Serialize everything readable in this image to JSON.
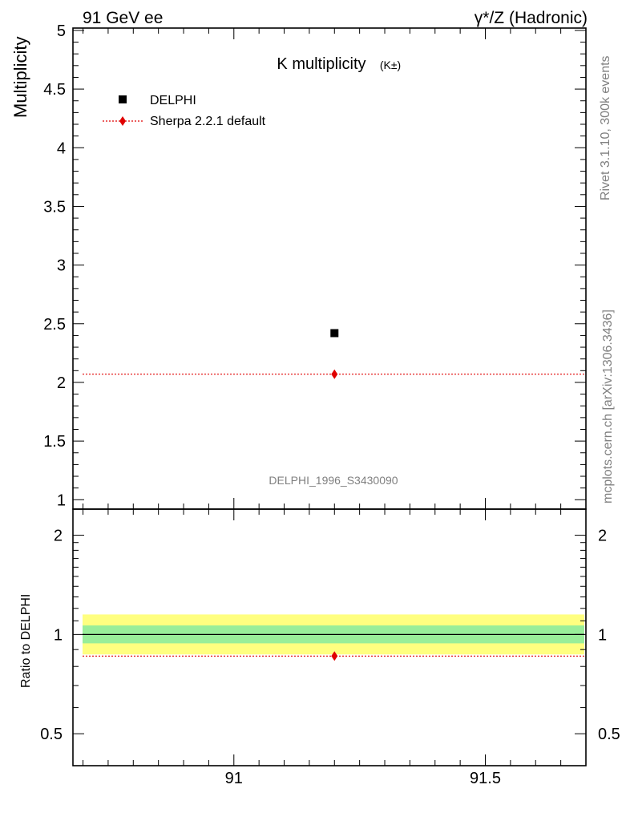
{
  "header": {
    "left": "91 GeV ee",
    "right": "γ*/Z (Hadronic)"
  },
  "side_text": {
    "top": "Rivet 3.1.10,  300k events",
    "bottom": "mcplots.cern.ch [arXiv:1306.3436]"
  },
  "chart_data": [
    {
      "type": "scatter",
      "title": "K multiplicity",
      "title_suffix": "(K±)",
      "ylabel": "Multiplicity",
      "xlabel": "",
      "watermark": "DELPHI_1996_S3430090",
      "xlim": [
        90.68,
        91.7
      ],
      "ylim": [
        0.92,
        5.02
      ],
      "yticks": [
        1,
        1.5,
        2,
        2.5,
        3,
        3.5,
        4,
        4.5,
        5
      ],
      "ytick_labels": [
        "1",
        "1.5",
        "2",
        "2.5",
        "3",
        "3.5",
        "4",
        "4.5",
        "5"
      ],
      "legend_position": "top-left",
      "series": [
        {
          "name": "DELPHI",
          "marker": "square",
          "color": "#000000",
          "points": [
            {
              "x": 91.2,
              "y": 2.42
            }
          ]
        },
        {
          "name": "Sherpa 2.2.1 default",
          "marker": "diamond",
          "color": "#e00000",
          "line_y": 2.07,
          "points": [
            {
              "x": 91.2,
              "y": 2.07
            }
          ]
        }
      ]
    },
    {
      "type": "scatter",
      "title": "",
      "ylabel": "Ratio to DELPHI",
      "xlabel": "",
      "xlim": [
        90.68,
        91.7
      ],
      "ylim": [
        0.4,
        2.4
      ],
      "ylog": true,
      "yticks": [
        0.5,
        1,
        2
      ],
      "ytick_labels": [
        "0.5",
        "1",
        "2"
      ],
      "xticks": [
        91,
        91.5
      ],
      "xtick_labels": [
        "91",
        "91.5"
      ],
      "bands": [
        {
          "name": "DELPHI total uncertainty",
          "color": "#ffff80",
          "low": 0.87,
          "high": 1.15
        },
        {
          "name": "DELPHI stat uncertainty",
          "color": "#99ee99",
          "low": 0.94,
          "high": 1.065
        }
      ],
      "reference_line": 1.0,
      "series": [
        {
          "name": "Sherpa 2.2.1 default",
          "marker": "diamond",
          "color": "#e00000",
          "line_y": 0.86,
          "points": [
            {
              "x": 91.2,
              "y": 0.86
            }
          ]
        }
      ]
    }
  ]
}
